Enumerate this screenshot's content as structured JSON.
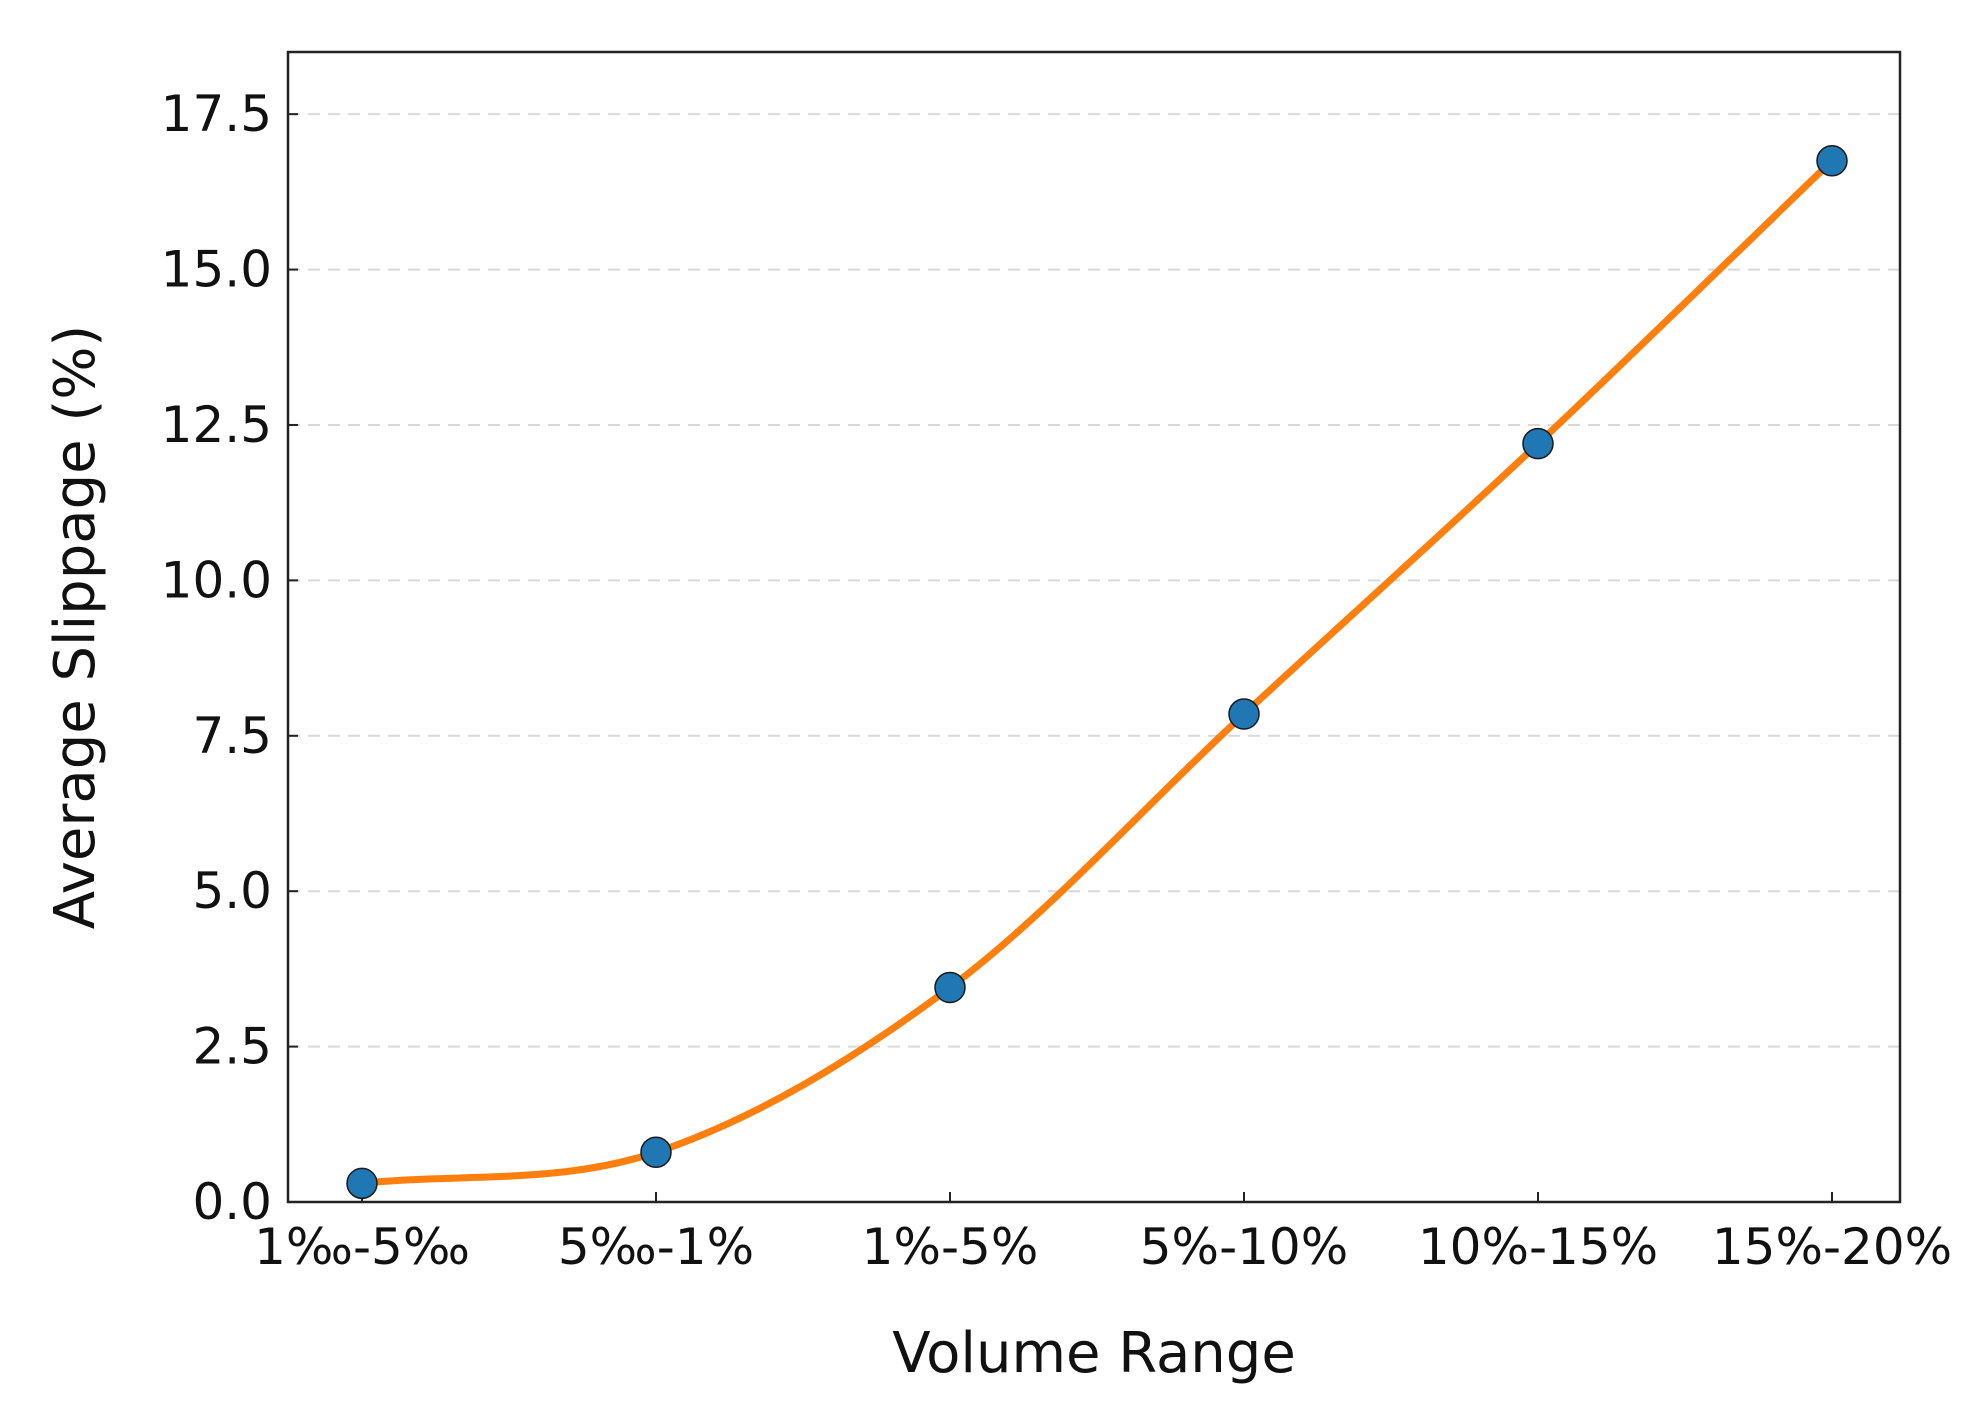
{
  "chart_data": {
    "type": "line",
    "title": "",
    "xlabel": "Volume Range",
    "ylabel": "Average Slippage (%)",
    "categories": [
      "1‰-5‰",
      "5‰-1%",
      "1%-5%",
      "5%-10%",
      "10%-15%",
      "15%-20%"
    ],
    "series": [
      {
        "values": [
          0.3,
          0.8,
          3.45,
          7.85,
          12.2,
          16.75
        ],
        "line_color": "#ff7f0e",
        "marker_color": "#1f77b4"
      }
    ],
    "ylim": [
      0,
      18.5
    ],
    "yticks": [
      0.0,
      2.5,
      5.0,
      7.5,
      10.0,
      12.5,
      15.0,
      17.5
    ],
    "ytick_labels": [
      "0.0",
      "2.5",
      "5.0",
      "7.5",
      "10.0",
      "12.5",
      "15.0",
      "17.5"
    ],
    "grid": "y-dashed",
    "legend": "none",
    "smooth": true
  }
}
